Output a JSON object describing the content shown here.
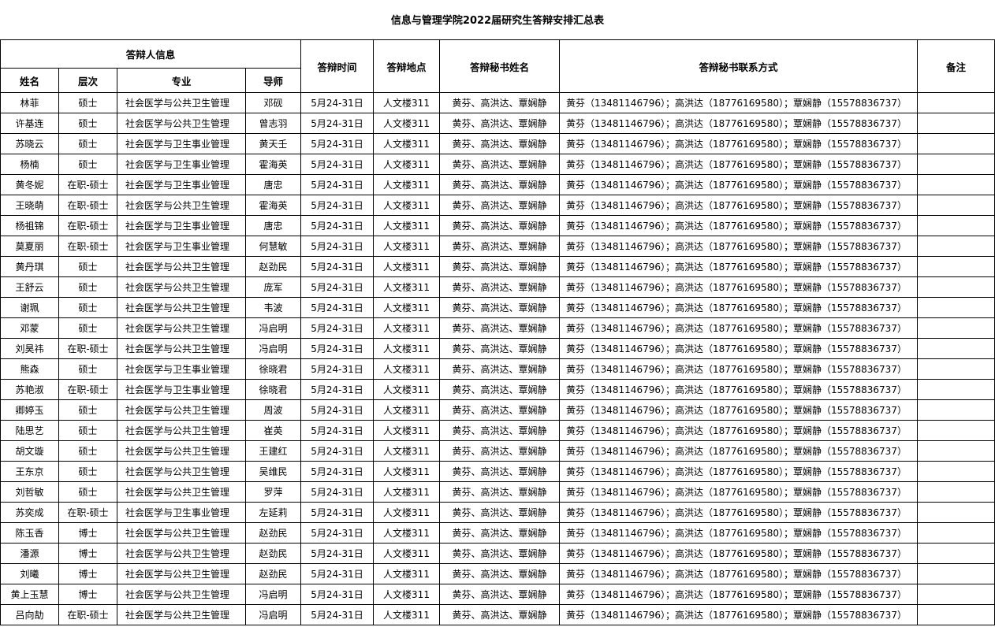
{
  "title": "信息与管理学院2022届研究生答辩安排汇总表",
  "headers": {
    "group": "答辩人信息",
    "name": "姓名",
    "level": "层次",
    "major": "专业",
    "advisor": "导师",
    "time": "答辩时间",
    "place": "答辩地点",
    "secretary": "答辩秘书姓名",
    "contact": "答辩秘书联系方式",
    "note": "备注"
  },
  "common": {
    "time": "5月24-31日",
    "place": "人文楼311",
    "secretary": "黄芬、高洪达、覃娴静",
    "contact": "黄芬（13481146796）；高洪达（18776169580）；覃娴静（15578836737）",
    "note": ""
  },
  "rows": [
    {
      "name": "林菲",
      "level": "硕士",
      "major": "社会医学与公共卫生管理",
      "advisor": "邓砚"
    },
    {
      "name": "许基连",
      "level": "硕士",
      "major": "社会医学与公共卫生管理",
      "advisor": "曾志羽"
    },
    {
      "name": "苏晓云",
      "level": "硕士",
      "major": "社会医学与卫生事业管理",
      "advisor": "黄天壬"
    },
    {
      "name": "杨楠",
      "level": "硕士",
      "major": "社会医学与卫生事业管理",
      "advisor": "霍海英"
    },
    {
      "name": "黄冬妮",
      "level": "在职-硕士",
      "major": "社会医学与卫生事业管理",
      "advisor": "唐忠"
    },
    {
      "name": "王晓萌",
      "level": "在职-硕士",
      "major": "社会医学与公共卫生管理",
      "advisor": "霍海英"
    },
    {
      "name": "杨祖锦",
      "level": "在职-硕士",
      "major": "社会医学与卫生事业管理",
      "advisor": "唐忠"
    },
    {
      "name": "莫夏丽",
      "level": "在职-硕士",
      "major": "社会医学与卫生事业管理",
      "advisor": "何慧敏"
    },
    {
      "name": "黄丹琪",
      "level": "硕士",
      "major": "社会医学与公共卫生管理",
      "advisor": "赵劲民"
    },
    {
      "name": "王舒云",
      "level": "硕士",
      "major": "社会医学与公共卫生管理",
      "advisor": "庞军"
    },
    {
      "name": "谢珮",
      "level": "硕士",
      "major": "社会医学与公共卫生管理",
      "advisor": "韦波"
    },
    {
      "name": "邓蒙",
      "level": "硕士",
      "major": "社会医学与公共卫生管理",
      "advisor": "冯启明"
    },
    {
      "name": "刘昊祎",
      "level": "在职-硕士",
      "major": "社会医学与公共卫生管理",
      "advisor": "冯启明"
    },
    {
      "name": "熊森",
      "level": "硕士",
      "major": "社会医学与卫生事业管理",
      "advisor": "徐晓君"
    },
    {
      "name": "苏艳淑",
      "level": "在职-硕士",
      "major": "社会医学与卫生事业管理",
      "advisor": "徐晓君"
    },
    {
      "name": "卿婷玉",
      "level": "硕士",
      "major": "社会医学与公共卫生管理",
      "advisor": "周波"
    },
    {
      "name": "陆思艺",
      "level": "硕士",
      "major": "社会医学与公共卫生管理",
      "advisor": "崔英"
    },
    {
      "name": "胡文璇",
      "level": "硕士",
      "major": "社会医学与公共卫生管理",
      "advisor": "王建红"
    },
    {
      "name": "王东京",
      "level": "硕士",
      "major": "社会医学与公共卫生管理",
      "advisor": "吴维民"
    },
    {
      "name": "刘哲敏",
      "level": "硕士",
      "major": "社会医学与公共卫生管理",
      "advisor": "罗萍"
    },
    {
      "name": "苏奕成",
      "level": "在职-硕士",
      "major": "社会医学与卫生事业管理",
      "advisor": "左延莉"
    },
    {
      "name": "陈玉香",
      "level": "博士",
      "major": "社会医学与公共卫生管理",
      "advisor": "赵劲民"
    },
    {
      "name": "潘源",
      "level": "博士",
      "major": "社会医学与公共卫生管理",
      "advisor": "赵劲民"
    },
    {
      "name": "刘曦",
      "level": "博士",
      "major": "社会医学与公共卫生管理",
      "advisor": "赵劲民"
    },
    {
      "name": "黄上玉慧",
      "level": "博士",
      "major": "社会医学与公共卫生管理",
      "advisor": "冯启明"
    },
    {
      "name": "吕向劼",
      "level": "在职-硕士",
      "major": "社会医学与公共卫生管理",
      "advisor": "冯启明"
    }
  ]
}
